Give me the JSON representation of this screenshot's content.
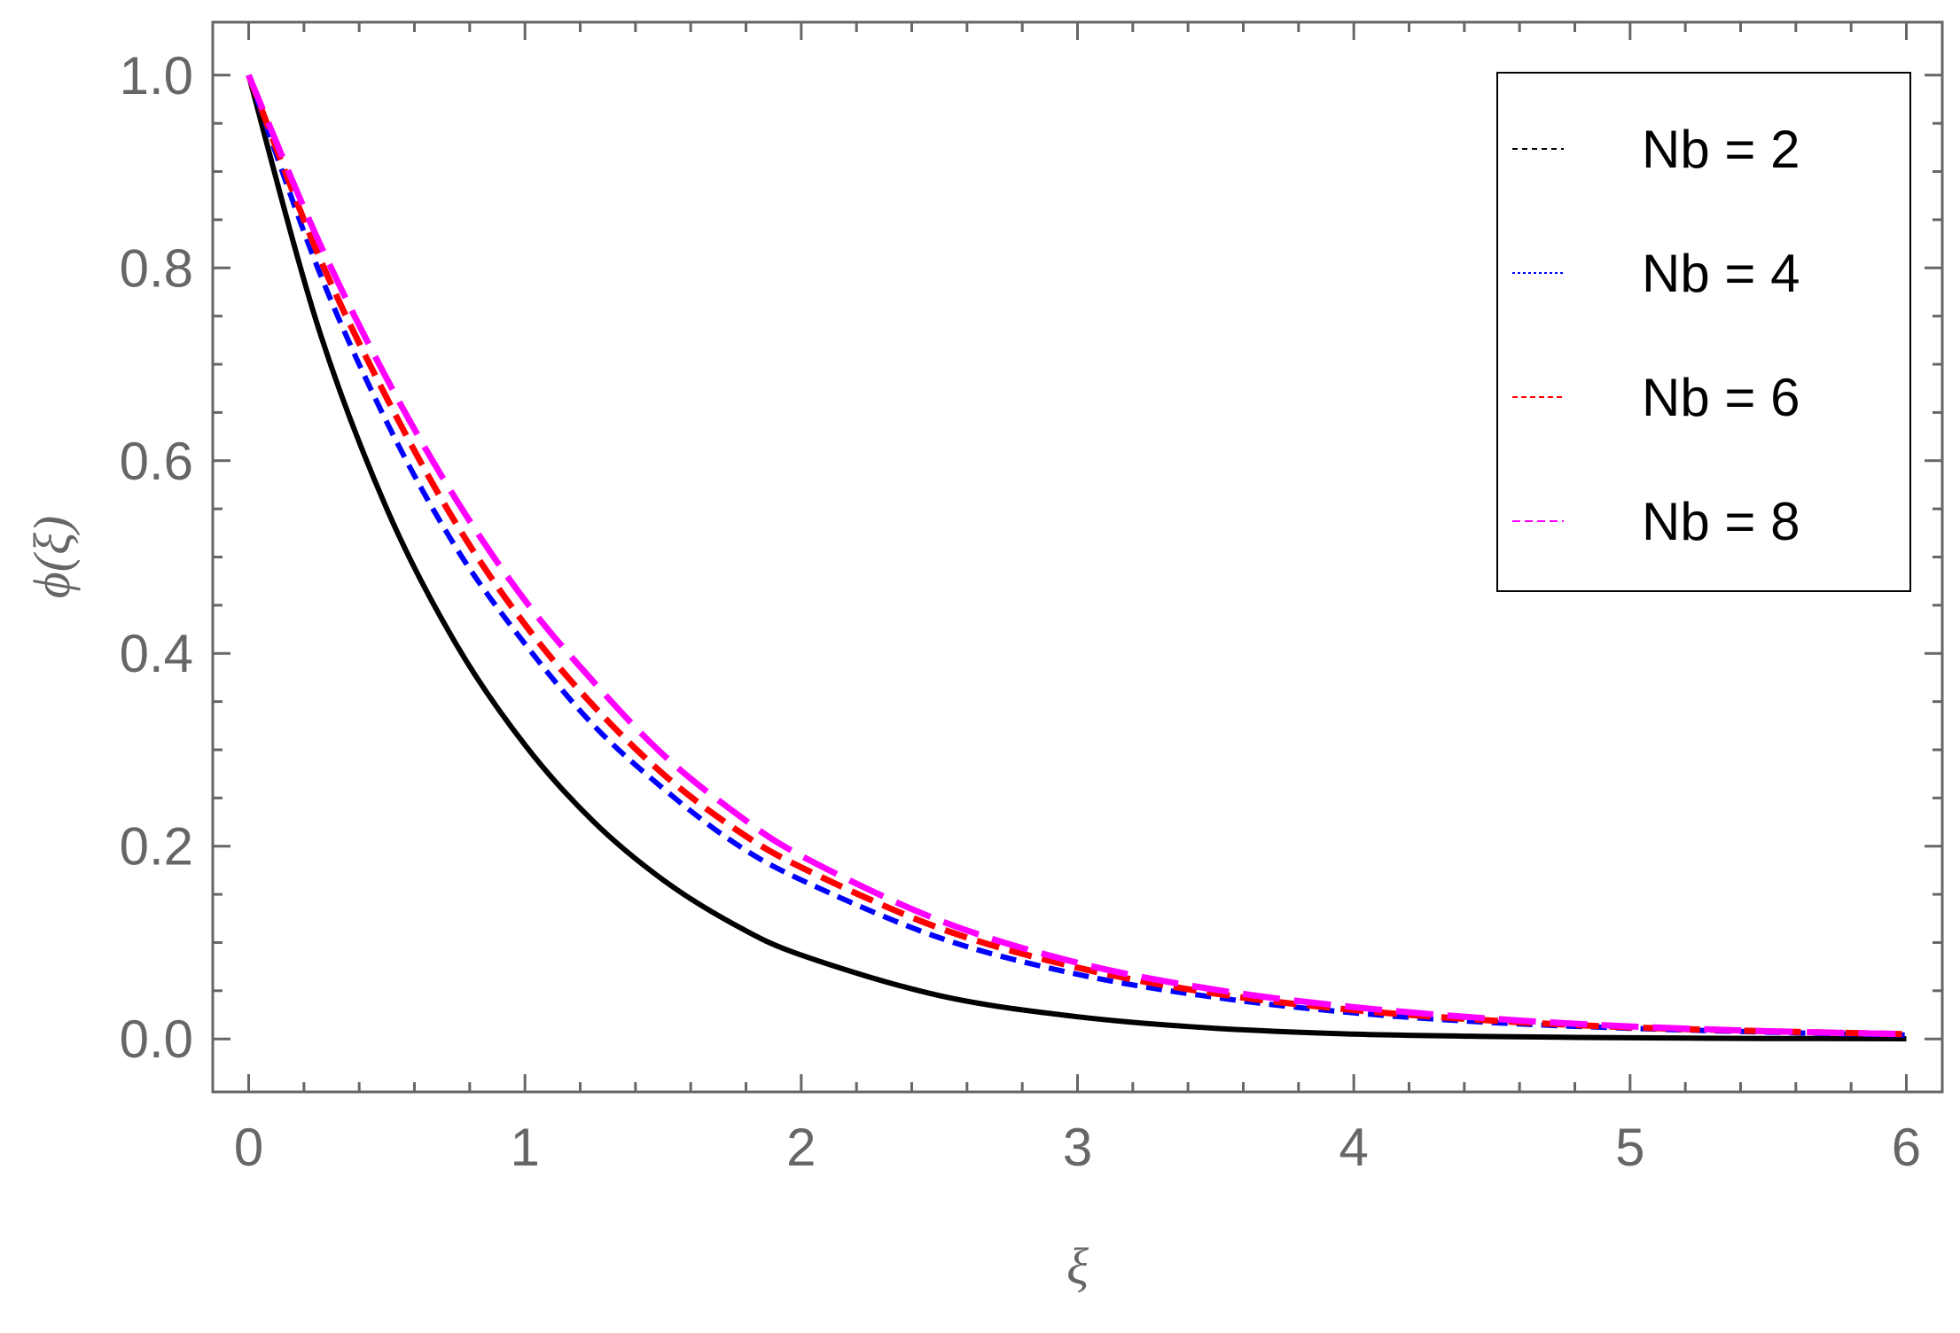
{
  "chart_data": {
    "type": "line",
    "xlabel": "ξ",
    "ylabel": "ϕ(ξ)",
    "xlim": [
      -0.13,
      6.13
    ],
    "ylim": [
      -0.055,
      1.055
    ],
    "xticks": [
      0,
      1,
      2,
      3,
      4,
      5,
      6
    ],
    "xtick_labels": [
      "0",
      "1",
      "2",
      "3",
      "4",
      "5",
      "6"
    ],
    "yticks": [
      0.0,
      0.2,
      0.4,
      0.6,
      0.8,
      1.0
    ],
    "ytick_labels": [
      "0.0",
      "0.2",
      "0.4",
      "0.6",
      "0.8",
      "1.0"
    ],
    "grid": false,
    "legend_position": "top-right",
    "x": [
      0,
      0.25,
      0.5,
      0.75,
      1.0,
      1.25,
      1.5,
      1.75,
      2.0,
      2.5,
      3.0,
      3.5,
      4.0,
      4.5,
      5.0,
      5.5,
      6.0
    ],
    "series": [
      {
        "name": "Nb = 2",
        "color": "#000000",
        "dash": "solid",
        "values": [
          1.0,
          0.74,
          0.55,
          0.41,
          0.305,
          0.225,
          0.165,
          0.12,
          0.087,
          0.045,
          0.023,
          0.011,
          0.005,
          0.0025,
          0.0012,
          0.0005,
          0.0002
        ]
      },
      {
        "name": "Nb = 4",
        "color": "#0000ff",
        "dash": "short-dash",
        "values": [
          1.0,
          0.8,
          0.64,
          0.51,
          0.41,
          0.325,
          0.26,
          0.205,
          0.165,
          0.105,
          0.067,
          0.043,
          0.027,
          0.017,
          0.011,
          0.007,
          0.004
        ]
      },
      {
        "name": "Nb = 6",
        "color": "#ff0000",
        "dash": "medium-dash",
        "values": [
          1.0,
          0.815,
          0.665,
          0.535,
          0.43,
          0.345,
          0.275,
          0.22,
          0.178,
          0.115,
          0.074,
          0.047,
          0.03,
          0.019,
          0.012,
          0.008,
          0.005
        ]
      },
      {
        "name": "Nb = 8",
        "color": "#ff00ff",
        "dash": "long-dash",
        "values": [
          1.0,
          0.83,
          0.685,
          0.56,
          0.455,
          0.37,
          0.295,
          0.237,
          0.19,
          0.123,
          0.079,
          0.051,
          0.033,
          0.021,
          0.013,
          0.008,
          0.005
        ]
      }
    ]
  }
}
